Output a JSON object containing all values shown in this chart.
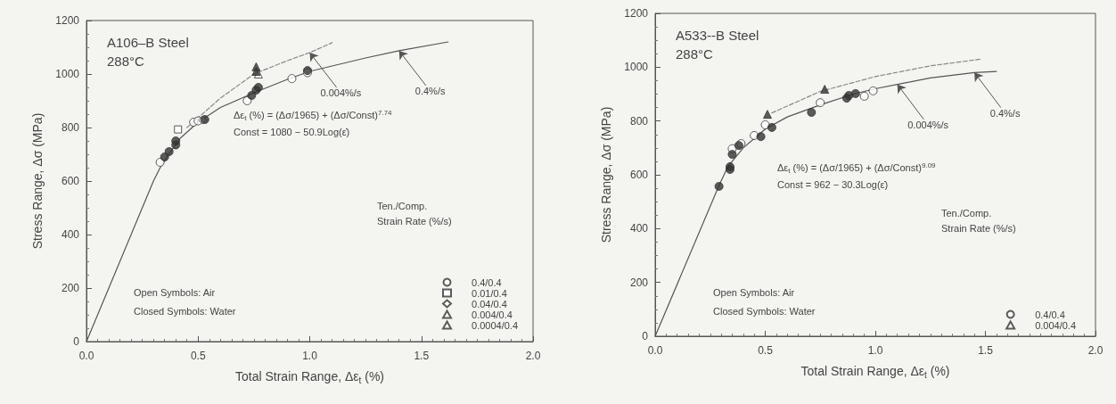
{
  "chart_data": [
    {
      "type": "scatter",
      "title": "A106–B Steel",
      "subtitle": "288°C",
      "xlabel": "Total Strain Range, Δε$_{t}$ (%)",
      "ylabel": "Stress Range, Δσ (MPa)",
      "legend_title": "Ten./Comp.\nStrain Rate (%/s)",
      "legend": "bottom right",
      "grid": false,
      "xlim": [
        0,
        2
      ],
      "xticks": [
        {
          "value": 0,
          "label": "0.0"
        },
        {
          "value": 0.5,
          "label": "0.5"
        },
        {
          "value": 1,
          "label": "1.0"
        },
        {
          "value": 1.5,
          "label": "1.5"
        },
        {
          "value": 2,
          "label": "2.0"
        }
      ],
      "ylim": [
        0,
        1200
      ],
      "yticks": [
        0,
        200,
        400,
        600,
        800,
        1000,
        1200
      ],
      "annotations": [
        "Δε$_{t}$ (%) = (Δσ/1965) + (Δσ/Const)$^{7.74}$",
        "Const = 1080 − 50.9Log(ε̇)",
        "Open Symbols: Air",
        "Closed Symbols: Water",
        {
          "text": "0.004%/s",
          "x": 1.0,
          "y": 1080
        },
        {
          "text": "0.4%/s",
          "x": 1.4,
          "y": 1087
        }
      ],
      "series": [
        {
          "name": "0.4/0.4",
          "marker": "circle",
          "color": "#ffffff",
          "x": [
            0.33,
            0.48,
            0.5,
            0.72,
            0.92,
            0.99
          ],
          "values": [
            670,
            820,
            825,
            900,
            983,
            1005
          ]
        },
        {
          "name": "0.01/0.4",
          "marker": "square",
          "color": "#ffffff",
          "x": [
            0.41
          ],
          "values": [
            793
          ]
        },
        {
          "name": "0.04/0.4",
          "marker": "diamond",
          "color": "#ffffff",
          "x": [
            0.52
          ],
          "values": [
            828
          ]
        },
        {
          "name": "0.004/0.4",
          "marker": "triangle",
          "color": "#ffffff",
          "x": [
            0.77
          ],
          "values": [
            1000
          ]
        },
        {
          "name": "0.0004/0.4",
          "marker": "triangle-down",
          "color": "#ffffff"
        },
        {
          "marker": "circle",
          "color": "#333333",
          "x": [
            0.35,
            0.37,
            0.4,
            0.4,
            0.53,
            0.74,
            0.76,
            0.77,
            0.99
          ],
          "values": [
            690,
            710,
            735,
            750,
            830,
            920,
            940,
            950,
            1013
          ]
        },
        {
          "marker": "triangle",
          "color": "#333333",
          "x": [
            0.76,
            0.76
          ],
          "values": [
            1010,
            1027
          ]
        },
        {
          "type": "line",
          "marker": "none",
          "line_style": "solid",
          "color": "#555555",
          "x": [
            0,
            0.3,
            0.33,
            0.36,
            0.42,
            0.5,
            0.6,
            0.75,
            0.9,
            1.0,
            1.25,
            1.4,
            1.62
          ],
          "values": [
            0,
            600,
            650,
            690,
            760,
            820,
            875,
            930,
            980,
            1010,
            1060,
            1087,
            1120
          ]
        },
        {
          "type": "line",
          "marker": "none",
          "line_style": "dashed",
          "color": "#888888",
          "x": [
            0.45,
            0.6,
            0.75,
            0.9,
            1.0,
            1.1
          ],
          "values": [
            800,
            910,
            1000,
            1050,
            1080,
            1117
          ]
        }
      ]
    },
    {
      "type": "scatter",
      "title": "A533--B Steel",
      "subtitle": "288°C",
      "xlabel": "Total Strain Range, Δε$_{t}$ (%)",
      "ylabel": "Stress Range, Δσ (MPa)",
      "legend_title": "Ten./Comp.\nStrain Rate (%/s)",
      "legend": "bottom right",
      "grid": false,
      "xlim": [
        0,
        2
      ],
      "xticks": [
        {
          "value": 0,
          "label": "0.0"
        },
        {
          "value": 0.5,
          "label": "0.5"
        },
        {
          "value": 1,
          "label": "1.0"
        },
        {
          "value": 1.5,
          "label": "1.5"
        },
        {
          "value": 2,
          "label": "2.0"
        }
      ],
      "ylim": [
        0,
        1200
      ],
      "yticks": [
        0,
        200,
        400,
        600,
        800,
        1000,
        1200
      ],
      "annotations": [
        "Δε$_{t}$ (%) = (Δσ/1965) + (Δσ/Const)$^{9.09}$",
        "Const = 962 − 30.3Log(ε̇)",
        "Open Symbols: Air",
        "Closed Symbols: Water",
        {
          "text": "0.004%/s",
          "x": 1.1,
          "y": 936
        },
        {
          "text": "0.4%/s",
          "x": 1.45,
          "y": 980
        }
      ],
      "series": [
        {
          "name": "0.4/0.4",
          "marker": "circle",
          "color": "#ffffff",
          "x": [
            0.35,
            0.39,
            0.45,
            0.5,
            0.75,
            0.95,
            0.99
          ],
          "values": [
            697,
            716,
            746,
            786,
            868,
            892,
            912
          ]
        },
        {
          "name": "0.004/0.4",
          "marker": "triangle",
          "color": "#ffffff"
        },
        {
          "marker": "circle",
          "color": "#333333",
          "x": [
            0.29,
            0.34,
            0.34,
            0.35,
            0.38,
            0.48,
            0.53,
            0.71,
            0.87,
            0.88,
            0.91
          ],
          "values": [
            557,
            620,
            630,
            676,
            709,
            742,
            776,
            832,
            885,
            895,
            902
          ]
        },
        {
          "marker": "triangle",
          "color": "#333333",
          "x": [
            0.51,
            0.77
          ],
          "values": [
            825,
            918
          ]
        },
        {
          "type": "line",
          "marker": "none",
          "line_style": "solid",
          "color": "#555555",
          "x": [
            0,
            0.29,
            0.33,
            0.4,
            0.5,
            0.6,
            0.75,
            0.9,
            1.0,
            1.1,
            1.25,
            1.45,
            1.55
          ],
          "values": [
            0,
            560,
            630,
            700,
            770,
            815,
            860,
            900,
            920,
            936,
            960,
            980,
            984
          ]
        },
        {
          "type": "line",
          "marker": "none",
          "line_style": "dashed",
          "color": "#888888",
          "x": [
            0.53,
            0.75,
            1.0,
            1.25,
            1.48
          ],
          "values": [
            830,
            910,
            965,
            1005,
            1030
          ]
        }
      ]
    }
  ]
}
